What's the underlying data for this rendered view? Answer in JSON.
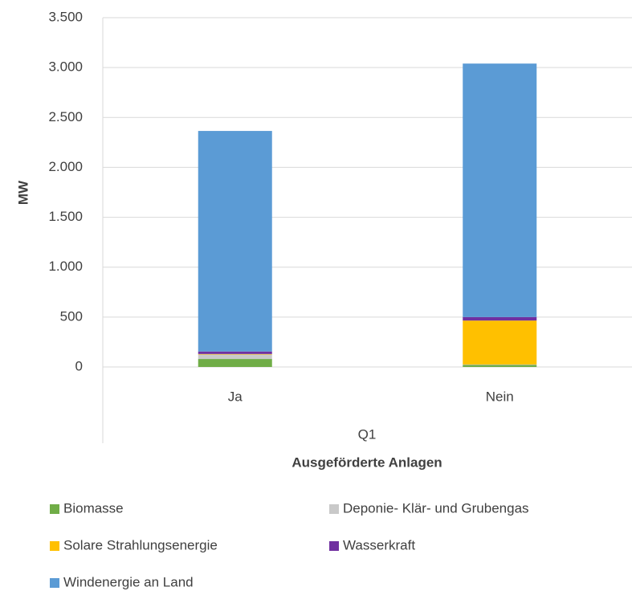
{
  "chart_data": {
    "type": "bar",
    "stacked": true,
    "categories": [
      "Ja",
      "Nein"
    ],
    "group_label": "Q1",
    "x_label": "Ausgeförderte Anlagen",
    "y_label": "MW",
    "series": [
      {
        "name": "Biomasse",
        "color": "#70ad47",
        "values": [
          80,
          20
        ]
      },
      {
        "name": "Deponie- Klär- und Grubengas",
        "color": "#c9c9c9",
        "values": [
          45,
          5
        ]
      },
      {
        "name": "Solare Strahlungsenergie",
        "color": "#ffc000",
        "values": [
          5,
          440
        ]
      },
      {
        "name": "Wasserkraft",
        "color": "#7030a0",
        "values": [
          25,
          35
        ]
      },
      {
        "name": "Windenergie an Land",
        "color": "#5b9bd5",
        "values": [
          2210,
          2540
        ]
      }
    ],
    "ylim": [
      0,
      3500
    ],
    "yticks": [
      0,
      500,
      {
        "value": 1000,
        "label": "1.000"
      },
      {
        "value": 1500,
        "label": "1.500"
      },
      {
        "value": 2000,
        "label": "2.000"
      },
      {
        "value": 2500,
        "label": "2.500"
      },
      {
        "value": 3000,
        "label": "3.000"
      },
      {
        "value": 3500,
        "label": "3.500"
      }
    ],
    "grid": true,
    "legend": "bottom"
  }
}
